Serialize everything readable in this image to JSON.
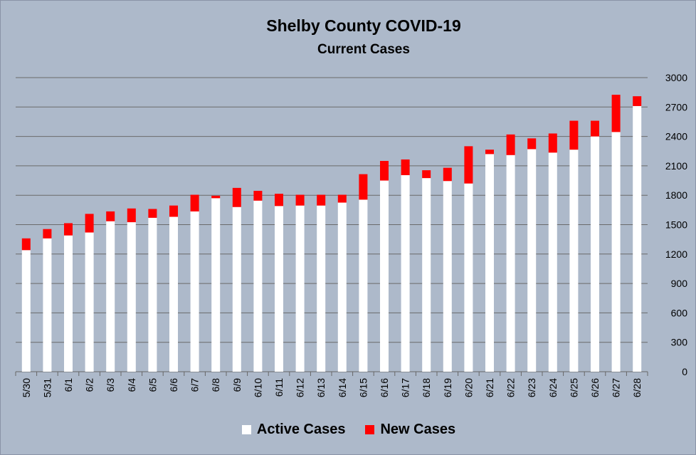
{
  "chart_data": {
    "type": "bar",
    "stacked": true,
    "title": "Shelby County COVID-19",
    "subtitle": "Current Cases",
    "categories": [
      "5/30",
      "5/31",
      "6/1",
      "6/2",
      "6/3",
      "6/4",
      "6/5",
      "6/6",
      "6/7",
      "6/8",
      "6/9",
      "6/10",
      "6/11",
      "6/12",
      "6/13",
      "6/14",
      "6/15",
      "6/16",
      "6/17",
      "6/18",
      "6/19",
      "6/20",
      "6/21",
      "6/22",
      "6/23",
      "6/24",
      "6/25",
      "6/26",
      "6/27",
      "6/28"
    ],
    "series": [
      {
        "name": "Active Cases",
        "color": "#ffffff",
        "values": [
          1240,
          1360,
          1390,
          1420,
          1535,
          1525,
          1570,
          1580,
          1635,
          1770,
          1680,
          1745,
          1690,
          1695,
          1695,
          1725,
          1755,
          1950,
          2005,
          1975,
          1945,
          1920,
          2220,
          2210,
          2270,
          2235,
          2265,
          2400,
          2445,
          2710
        ]
      },
      {
        "name": "New Cases",
        "color": "#ff0000",
        "values": [
          120,
          95,
          125,
          190,
          100,
          140,
          90,
          115,
          170,
          25,
          195,
          100,
          125,
          110,
          110,
          80,
          260,
          200,
          160,
          80,
          135,
          380,
          45,
          210,
          110,
          195,
          295,
          160,
          380,
          100
        ]
      }
    ],
    "ylim": [
      0,
      3000
    ],
    "yticks": [
      0,
      300,
      600,
      900,
      1200,
      1500,
      1800,
      2100,
      2400,
      2700,
      3000
    ],
    "y_axis_side": "right",
    "grid": true,
    "legend_position": "bottom"
  }
}
